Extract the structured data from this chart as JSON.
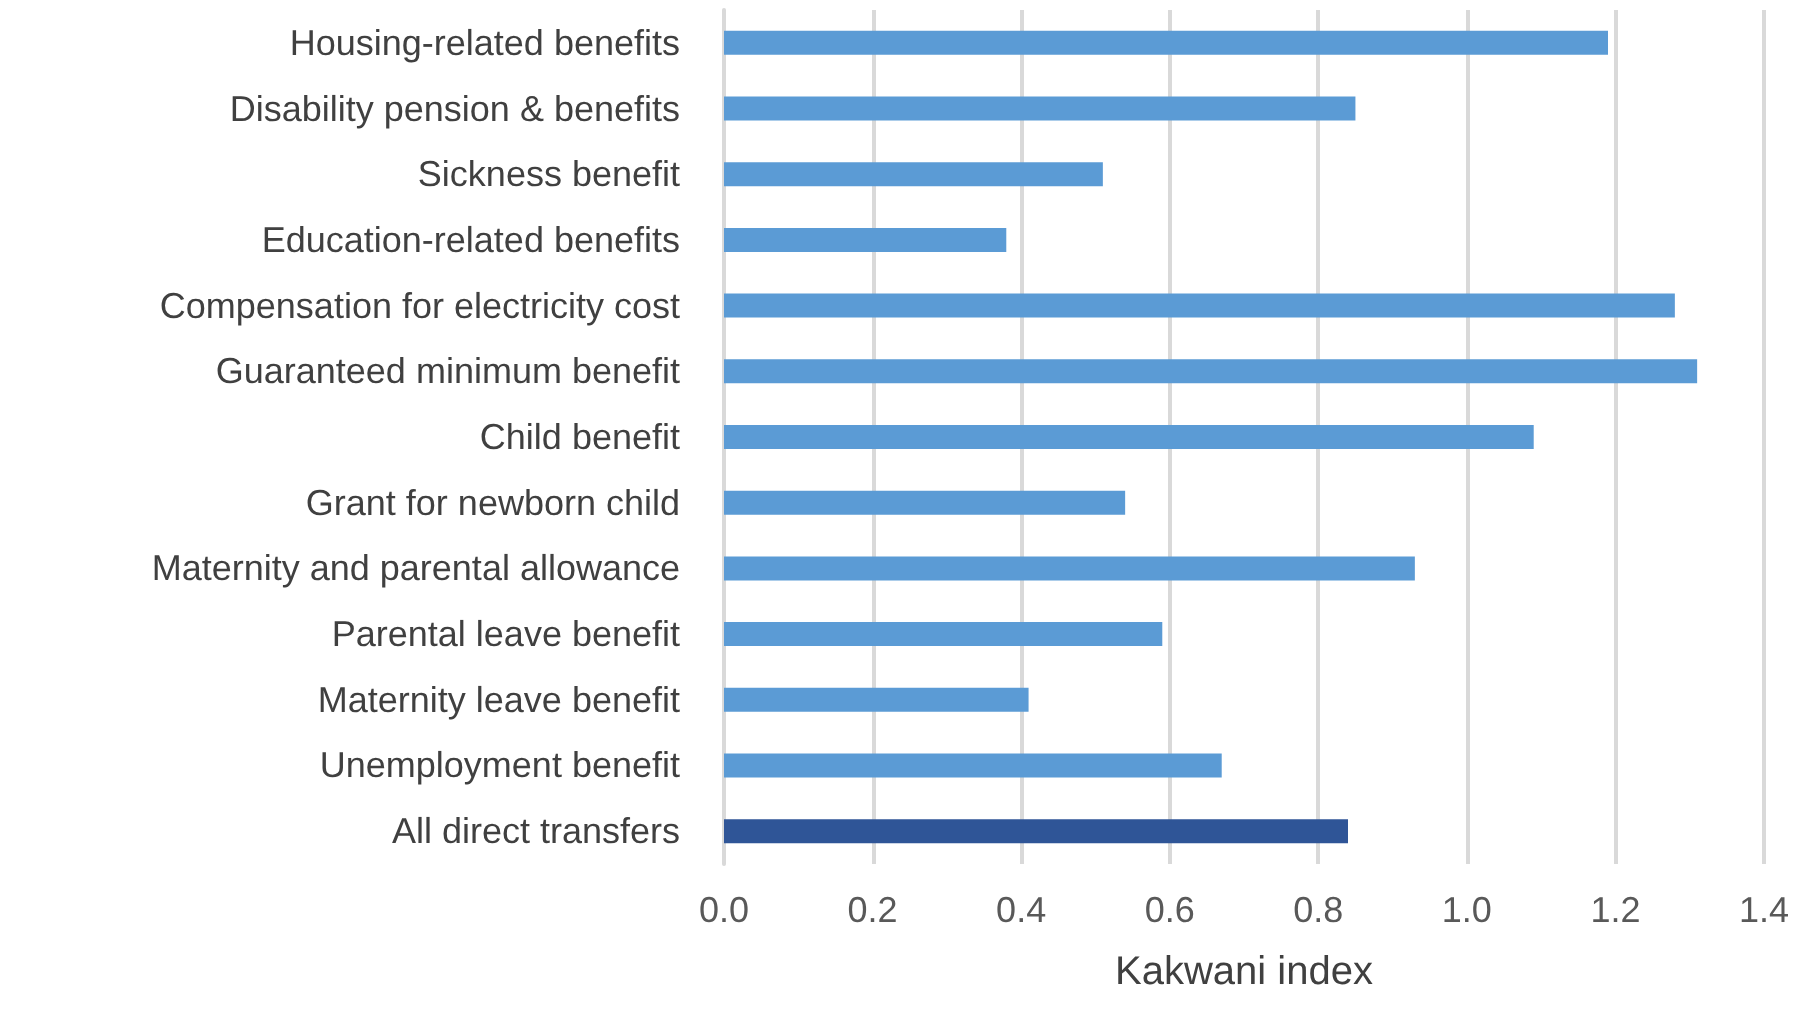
{
  "chart_data": {
    "type": "bar",
    "orientation": "horizontal",
    "xlabel": "Kakwani index",
    "categories": [
      "Housing-related benefits",
      "Disability pension & benefits",
      "Sickness benefit",
      "Education-related benefits",
      "Compensation for electricity cost",
      "Guaranteed minimum benefit",
      "Child benefit",
      "Grant for newborn child",
      "Maternity and parental allowance",
      "Parental leave benefit",
      "Maternity leave benefit",
      "Unemployment benefit",
      "All direct transfers"
    ],
    "values": [
      1.19,
      0.85,
      0.51,
      0.38,
      1.28,
      1.31,
      1.09,
      0.54,
      0.93,
      0.59,
      0.41,
      0.67,
      0.84
    ],
    "colors": [
      "#5b9bd5",
      "#5b9bd5",
      "#5b9bd5",
      "#5b9bd5",
      "#5b9bd5",
      "#5b9bd5",
      "#5b9bd5",
      "#5b9bd5",
      "#5b9bd5",
      "#5b9bd5",
      "#5b9bd5",
      "#5b9bd5",
      "#2f5597"
    ],
    "xlim": [
      0,
      1.4
    ],
    "xticks": [
      {
        "value": 0,
        "label": "0.0"
      },
      {
        "value": 0.2,
        "label": "0.2"
      },
      {
        "value": 0.4,
        "label": "0.4"
      },
      {
        "value": 0.6,
        "label": "0.6"
      },
      {
        "value": 0.8,
        "label": "0.8"
      },
      {
        "value": 1,
        "label": "1.0"
      },
      {
        "value": 1.2,
        "label": "1.2"
      },
      {
        "value": 1.4,
        "label": "1.4"
      }
    ],
    "grid": "x"
  }
}
